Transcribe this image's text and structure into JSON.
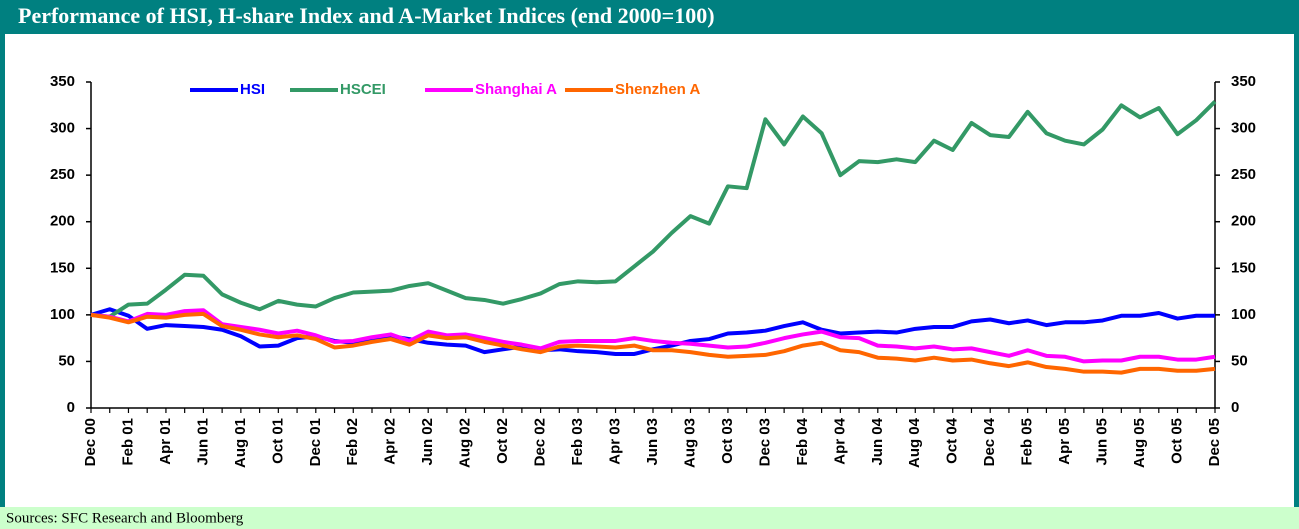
{
  "chart_data": {
    "type": "line",
    "title": "Performance of HSI, H-share Index and A-Market Indices (end 2000=100)",
    "source": "Sources: SFC Research and Bloomberg",
    "categories": [
      "Dec 00",
      null,
      "Feb 01",
      null,
      "Apr 01",
      null,
      "Jun 01",
      null,
      "Aug 01",
      null,
      "Oct 01",
      null,
      "Dec 01",
      null,
      "Feb 02",
      null,
      "Apr 02",
      null,
      "Jun 02",
      null,
      "Aug 02",
      null,
      "Oct 02",
      null,
      "Dec 02",
      null,
      "Feb 03",
      null,
      "Apr 03",
      null,
      "Jun 03",
      null,
      "Aug 03",
      null,
      "Oct 03",
      null,
      "Dec 03",
      null,
      "Feb 04",
      null,
      "Apr 04",
      null,
      "Jun 04",
      null,
      "Aug 04",
      null,
      "Oct 04",
      null,
      "Dec 04",
      null,
      "Feb 05",
      null,
      "Apr 05",
      null,
      "Jun 05",
      null,
      "Aug 05",
      null,
      "Oct 05",
      null,
      "Dec 05"
    ],
    "series": [
      {
        "name": "HSI",
        "color": "#0000ff",
        "values": [
          100,
          106,
          99,
          85,
          89,
          88,
          87,
          84,
          77,
          66,
          67,
          75,
          77,
          72,
          70,
          75,
          77,
          74,
          70,
          68,
          67,
          60,
          63,
          66,
          62,
          63,
          61,
          60,
          58,
          58,
          63,
          67,
          72,
          74,
          80,
          81,
          83,
          88,
          92,
          84,
          80,
          81,
          82,
          81,
          85,
          87,
          87,
          93,
          95,
          91,
          94,
          89,
          92,
          92,
          94,
          99,
          99,
          102,
          96,
          99,
          99
        ]
      },
      {
        "name": "HSCEI",
        "color": "#339966",
        "values": [
          100,
          98,
          111,
          112,
          127,
          143,
          142,
          122,
          113,
          106,
          115,
          111,
          109,
          118,
          124,
          125,
          126,
          131,
          134,
          126,
          118,
          116,
          112,
          117,
          123,
          133,
          136,
          135,
          136,
          152,
          168,
          188,
          206,
          198,
          238,
          236,
          310,
          283,
          313,
          295,
          250,
          265,
          264,
          267,
          264,
          287,
          277,
          306,
          293,
          291,
          318,
          295,
          287,
          283,
          299,
          325,
          312,
          322,
          294,
          309,
          329
        ]
      },
      {
        "name": "Shanghai A",
        "color": "#ff00ff",
        "values": [
          100,
          98,
          93,
          101,
          100,
          104,
          105,
          90,
          87,
          84,
          80,
          83,
          78,
          71,
          72,
          76,
          79,
          72,
          82,
          78,
          79,
          75,
          71,
          68,
          64,
          71,
          72,
          72,
          72,
          75,
          72,
          70,
          69,
          67,
          65,
          66,
          70,
          75,
          79,
          82,
          76,
          75,
          67,
          66,
          64,
          66,
          63,
          64,
          60,
          56,
          62,
          56,
          55,
          50,
          51,
          51,
          55,
          55,
          52,
          52,
          55
        ]
      },
      {
        "name": "Shenzhen A",
        "color": "#ff6600",
        "values": [
          100,
          97,
          92,
          98,
          97,
          100,
          101,
          88,
          84,
          79,
          76,
          78,
          74,
          65,
          67,
          71,
          74,
          68,
          78,
          75,
          76,
          71,
          67,
          63,
          60,
          66,
          67,
          66,
          65,
          67,
          62,
          62,
          60,
          57,
          55,
          56,
          57,
          61,
          67,
          70,
          62,
          60,
          54,
          53,
          51,
          54,
          51,
          52,
          48,
          45,
          49,
          44,
          42,
          39,
          39,
          38,
          42,
          42,
          40,
          40,
          42
        ]
      }
    ],
    "ylim": [
      0,
      350
    ],
    "yticks": [
      0,
      50,
      100,
      150,
      200,
      250,
      300,
      350
    ],
    "y2lim": [
      0,
      350
    ],
    "y2ticks": [
      0,
      50,
      100,
      150,
      200,
      250,
      300,
      350
    ],
    "legend": "top"
  }
}
